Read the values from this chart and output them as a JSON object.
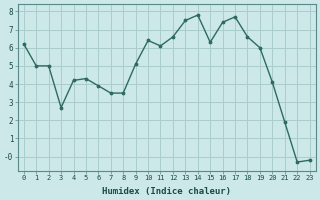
{
  "x": [
    0,
    1,
    2,
    3,
    4,
    5,
    6,
    7,
    8,
    9,
    10,
    11,
    12,
    13,
    14,
    15,
    16,
    17,
    18,
    19,
    20,
    21,
    22,
    23
  ],
  "y": [
    6.2,
    5.0,
    5.0,
    2.7,
    4.2,
    4.3,
    3.9,
    3.5,
    3.5,
    5.1,
    6.4,
    6.1,
    6.6,
    7.5,
    7.8,
    6.3,
    7.4,
    7.7,
    6.6,
    6.0,
    4.1,
    1.9,
    -0.3,
    -0.2
  ],
  "xlabel": "Humidex (Indice chaleur)",
  "line_color": "#2e6b5e",
  "bg_color": "#cce8e8",
  "grid_color": "#aacccc",
  "ylim": [
    -0.8,
    8.4
  ],
  "xlim": [
    -0.5,
    23.5
  ],
  "ytick_labels": [
    "8",
    "7",
    "6",
    "5",
    "4",
    "3",
    "2",
    "1",
    "-0"
  ],
  "ytick_vals": [
    8,
    7,
    6,
    5,
    4,
    3,
    2,
    1,
    0
  ],
  "xticks": [
    0,
    1,
    2,
    3,
    4,
    5,
    6,
    7,
    8,
    9,
    10,
    11,
    12,
    13,
    14,
    15,
    16,
    17,
    18,
    19,
    20,
    21,
    22,
    23
  ]
}
